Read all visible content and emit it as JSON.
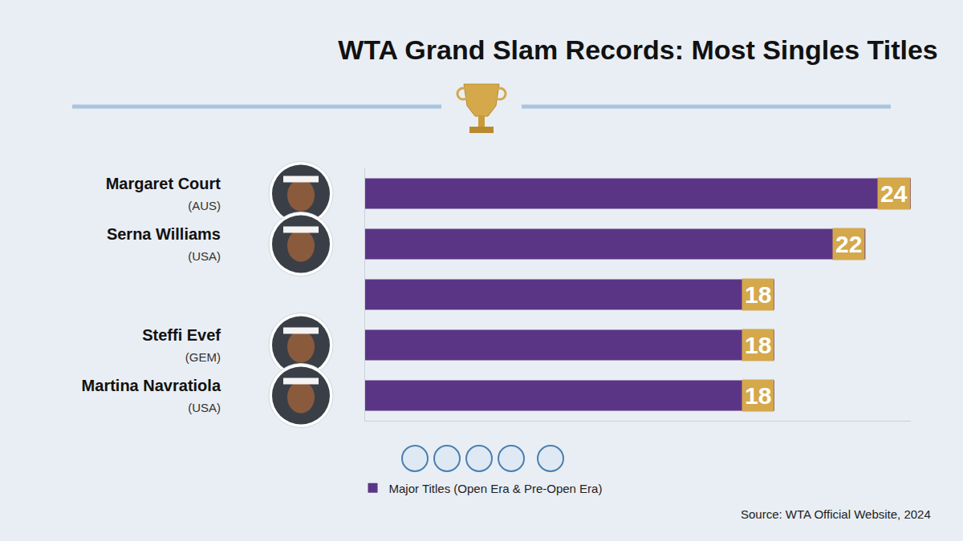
{
  "chart_data": {
    "type": "bar",
    "orientation": "horizontal",
    "title": "WTA Grand Slam Records: Most Singles Titles",
    "categories": [
      "Margaret Court",
      "Serna Williams",
      null,
      "Steffi Evef",
      "Martina Navratiola"
    ],
    "countries": [
      "(AUS)",
      "(USA)",
      null,
      "(GEM)",
      "(USA)"
    ],
    "series": [
      {
        "name": "Major Titles (Open Era & Pre-Open Era)",
        "color": "#5b3585",
        "values": [
          24,
          22,
          18,
          18,
          18
        ]
      }
    ],
    "xlim": [
      0,
      24
    ],
    "tick_labels": "y",
    "data_labels": true,
    "grid": false,
    "legend": "bottom",
    "source": "Source: WTA Official Website, 2024"
  }
}
